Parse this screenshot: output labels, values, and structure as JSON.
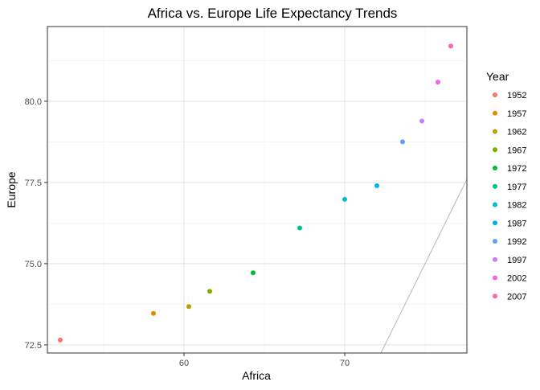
{
  "chart_data": {
    "type": "scatter",
    "title": "Africa vs. Europe Life Expectancy Trends",
    "xlabel": "Africa",
    "ylabel": "Europe",
    "xlim": [
      51.5,
      77.6
    ],
    "ylim": [
      72.25,
      82.3
    ],
    "x_ticks": [
      {
        "value": 60,
        "label": "60"
      },
      {
        "value": 70,
        "label": "70"
      }
    ],
    "y_ticks": [
      {
        "value": 72.5,
        "label": "72.5"
      },
      {
        "value": 75.0,
        "label": "75.0"
      },
      {
        "value": 77.5,
        "label": "77.5"
      },
      {
        "value": 80.0,
        "label": "80.0"
      }
    ],
    "grid": true,
    "legend": {
      "title": "Year",
      "position": "right",
      "entries": [
        {
          "label": "1952",
          "color": "#F8766D"
        },
        {
          "label": "1957",
          "color": "#DE8C00"
        },
        {
          "label": "1962",
          "color": "#B79F00"
        },
        {
          "label": "1967",
          "color": "#7CAE00"
        },
        {
          "label": "1972",
          "color": "#00BA38"
        },
        {
          "label": "1977",
          "color": "#00C08B"
        },
        {
          "label": "1982",
          "color": "#00BFC4"
        },
        {
          "label": "1987",
          "color": "#00B4F0"
        },
        {
          "label": "1992",
          "color": "#619CFF"
        },
        {
          "label": "1997",
          "color": "#C77CFF"
        },
        {
          "label": "2002",
          "color": "#F564E3"
        },
        {
          "label": "2007",
          "color": "#FF64B0"
        }
      ]
    },
    "points": [
      {
        "year": "1952",
        "x": 52.3,
        "y": 72.65,
        "color": "#F8766D"
      },
      {
        "year": "1957",
        "x": 58.1,
        "y": 73.47,
        "color": "#DE8C00"
      },
      {
        "year": "1962",
        "x": 60.3,
        "y": 73.68,
        "color": "#B79F00"
      },
      {
        "year": "1967",
        "x": 61.6,
        "y": 74.15,
        "color": "#7CAE00"
      },
      {
        "year": "1972",
        "x": 64.3,
        "y": 74.72,
        "color": "#00BA38"
      },
      {
        "year": "1977",
        "x": 67.2,
        "y": 76.1,
        "color": "#00C08B"
      },
      {
        "year": "1982",
        "x": 70.0,
        "y": 76.98,
        "color": "#00BFC4"
      },
      {
        "year": "1987",
        "x": 72.0,
        "y": 77.4,
        "color": "#00B4F0"
      },
      {
        "year": "1992",
        "x": 73.6,
        "y": 78.75,
        "color": "#619CFF"
      },
      {
        "year": "1997",
        "x": 74.8,
        "y": 79.39,
        "color": "#C77CFF"
      },
      {
        "year": "2002",
        "x": 75.8,
        "y": 80.59,
        "color": "#F564E3"
      },
      {
        "year": "2007",
        "x": 76.6,
        "y": 81.7,
        "color": "#FF64B0"
      }
    ],
    "reference_line": {
      "type": "y=x",
      "color": "#bdbdbd"
    },
    "colors": {
      "panel_border": "#333333",
      "grid_major": "#e5e5e5",
      "grid_minor": "#f2f2f2",
      "tick_text": "#4d4d4d",
      "text": "#000000"
    }
  }
}
